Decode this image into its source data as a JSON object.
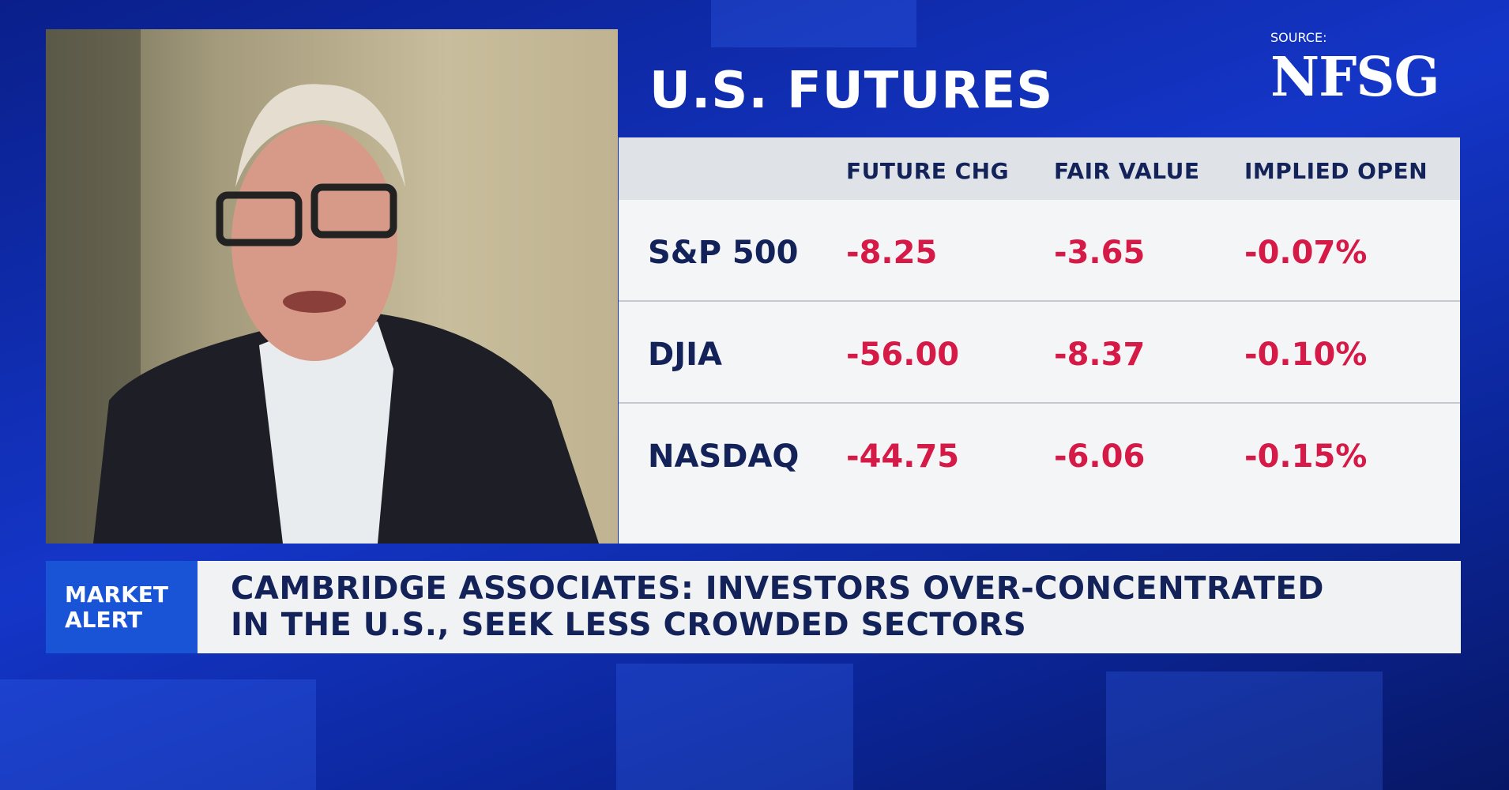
{
  "panel": {
    "title": "U.S. FUTURES",
    "source_label": "SOURCE:",
    "source": "NFSG"
  },
  "table": {
    "headers": [
      "FUTURE CHG",
      "FAIR VALUE",
      "IMPLIED OPEN"
    ],
    "rows": [
      [
        "S&P 500",
        "-8.25",
        "-3.65",
        "-0.07%"
      ],
      [
        "DJIA",
        "-56.00",
        "-8.37",
        "-0.10%"
      ],
      [
        "NASDAQ",
        "-44.75",
        "-6.06",
        "-0.15%"
      ]
    ]
  },
  "ticker": {
    "label": [
      "MARKET",
      "ALERT"
    ],
    "headline": [
      "CAMBRIDGE ASSOCIATES: INVESTORS OVER-CONCENTRATED",
      "IN THE U.S., SEEK LESS CROWDED SECTORS"
    ]
  }
}
